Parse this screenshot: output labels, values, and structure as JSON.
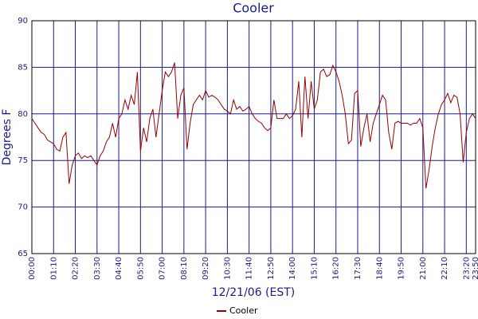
{
  "chart_data": {
    "type": "line",
    "title": "Cooler",
    "x_label": "12/21/06 (EST)",
    "y_label": "Degrees F",
    "xlim": [
      0,
      1430
    ],
    "ylim": [
      65,
      90
    ],
    "yticks": [
      65,
      70,
      75,
      80,
      85,
      90
    ],
    "xticks": [
      {
        "value": 0,
        "label": "00:00"
      },
      {
        "value": 70,
        "label": "01:10"
      },
      {
        "value": 140,
        "label": "02:20"
      },
      {
        "value": 210,
        "label": "03:30"
      },
      {
        "value": 280,
        "label": "04:40"
      },
      {
        "value": 350,
        "label": "05:50"
      },
      {
        "value": 420,
        "label": "07:00"
      },
      {
        "value": 490,
        "label": "08:10"
      },
      {
        "value": 560,
        "label": "09:20"
      },
      {
        "value": 630,
        "label": "10:30"
      },
      {
        "value": 700,
        "label": "11:40"
      },
      {
        "value": 770,
        "label": "12:50"
      },
      {
        "value": 840,
        "label": "14:00"
      },
      {
        "value": 910,
        "label": "15:10"
      },
      {
        "value": 980,
        "label": "16:20"
      },
      {
        "value": 1050,
        "label": "17:30"
      },
      {
        "value": 1120,
        "label": "18:40"
      },
      {
        "value": 1190,
        "label": "19:50"
      },
      {
        "value": 1260,
        "label": "21:00"
      },
      {
        "value": 1330,
        "label": "22:10"
      },
      {
        "value": 1400,
        "label": "23:20"
      },
      {
        "value": 1430,
        "label": "23:50"
      }
    ],
    "grid": true,
    "legend": "bottom",
    "x": [
      0,
      10,
      20,
      30,
      40,
      50,
      60,
      70,
      80,
      90,
      100,
      110,
      120,
      130,
      140,
      150,
      160,
      170,
      180,
      190,
      200,
      210,
      220,
      230,
      240,
      250,
      260,
      270,
      280,
      290,
      300,
      310,
      320,
      330,
      340,
      350,
      360,
      370,
      380,
      390,
      400,
      410,
      420,
      430,
      440,
      450,
      460,
      470,
      480,
      490,
      500,
      510,
      520,
      530,
      540,
      550,
      560,
      570,
      580,
      590,
      600,
      610,
      620,
      630,
      640,
      650,
      660,
      670,
      680,
      690,
      700,
      710,
      720,
      730,
      740,
      750,
      760,
      770,
      780,
      790,
      800,
      810,
      820,
      830,
      840,
      850,
      860,
      870,
      880,
      890,
      900,
      910,
      920,
      930,
      940,
      950,
      960,
      970,
      980,
      990,
      1000,
      1010,
      1020,
      1030,
      1040,
      1050,
      1060,
      1070,
      1080,
      1090,
      1100,
      1110,
      1120,
      1130,
      1140,
      1150,
      1160,
      1170,
      1180,
      1190,
      1200,
      1210,
      1220,
      1230,
      1240,
      1250,
      1260,
      1270,
      1280,
      1290,
      1300,
      1310,
      1320,
      1330,
      1340,
      1350,
      1360,
      1370,
      1380,
      1390,
      1400,
      1410,
      1420,
      1430
    ],
    "series": [
      {
        "name": "Cooler",
        "color": "#990000",
        "values": [
          79.5,
          79,
          78.5,
          78,
          77.8,
          77.2,
          77,
          76.8,
          76.2,
          76,
          77.5,
          78,
          72.5,
          74.5,
          75.5,
          75.8,
          75.2,
          75.5,
          75.3,
          75.5,
          75,
          74.5,
          75.5,
          76,
          77,
          77.5,
          79,
          77.5,
          79.5,
          80,
          81.5,
          80.5,
          82,
          81,
          84.5,
          76,
          78.5,
          77,
          79.5,
          80.5,
          77.5,
          80,
          82.5,
          84.5,
          84,
          84.5,
          85.5,
          79.5,
          82,
          82.8,
          76.2,
          79,
          81,
          81.5,
          82,
          81.5,
          82.5,
          81.8,
          82,
          81.8,
          81.5,
          81,
          80.5,
          80.3,
          80,
          81.5,
          80.5,
          80.8,
          80.3,
          80.5,
          80.8,
          80,
          79.5,
          79.2,
          79,
          78.5,
          78.2,
          78.5,
          81.5,
          79.5,
          79.5,
          79.5,
          80,
          79.5,
          79.8,
          80.5,
          83.5,
          77.5,
          84,
          79.5,
          83.5,
          80.5,
          81.5,
          84.5,
          84.8,
          84,
          84.2,
          85.2,
          84.5,
          83.5,
          82,
          80,
          76.8,
          77.2,
          82.2,
          82.5,
          76.5,
          78.5,
          80,
          77,
          79,
          80,
          81,
          82,
          81.5,
          78,
          76.2,
          79,
          79.2,
          79,
          79,
          79,
          78.8,
          79,
          79,
          79.5,
          78.5,
          72,
          74,
          76.5,
          78.5,
          80,
          81,
          81.5,
          82.2,
          81.2,
          82,
          81.8,
          80,
          74.8,
          78,
          79.5,
          80,
          79.5
        ]
      }
    ]
  }
}
